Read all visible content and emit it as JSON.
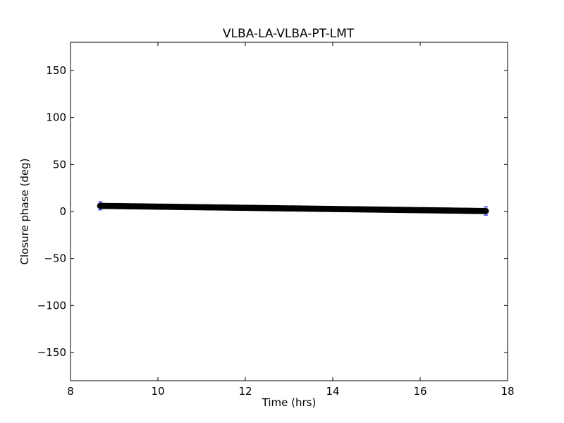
{
  "chart_data": {
    "type": "scatter",
    "title": "VLBA-LA-VLBA-PT-LMT",
    "xlabel": "Time (hrs)",
    "ylabel": "Closure phase (deg)",
    "xlim": [
      8,
      18
    ],
    "ylim": [
      -180,
      180
    ],
    "xticks": [
      8,
      10,
      12,
      14,
      16,
      18
    ],
    "yticks": [
      -150,
      -100,
      -50,
      0,
      50,
      100,
      150
    ],
    "x_tick_labels": [
      "8",
      "10",
      "12",
      "14",
      "16",
      "18"
    ],
    "y_tick_labels": [
      "−150",
      "−100",
      "−50",
      "0",
      "50",
      "100",
      "150"
    ],
    "grid": false,
    "legend": "none",
    "series": [
      {
        "marker": "circle",
        "color": "#000000",
        "x_start": 8.68,
        "x_end": 17.5,
        "y_start": 6,
        "y_end": 0.5,
        "num_points": 180,
        "error_bars": {
          "color": "#0000ff",
          "cap_marker": "plus",
          "min_error": 1,
          "edge_error": 180,
          "profile_k": 0.02
        }
      }
    ]
  }
}
